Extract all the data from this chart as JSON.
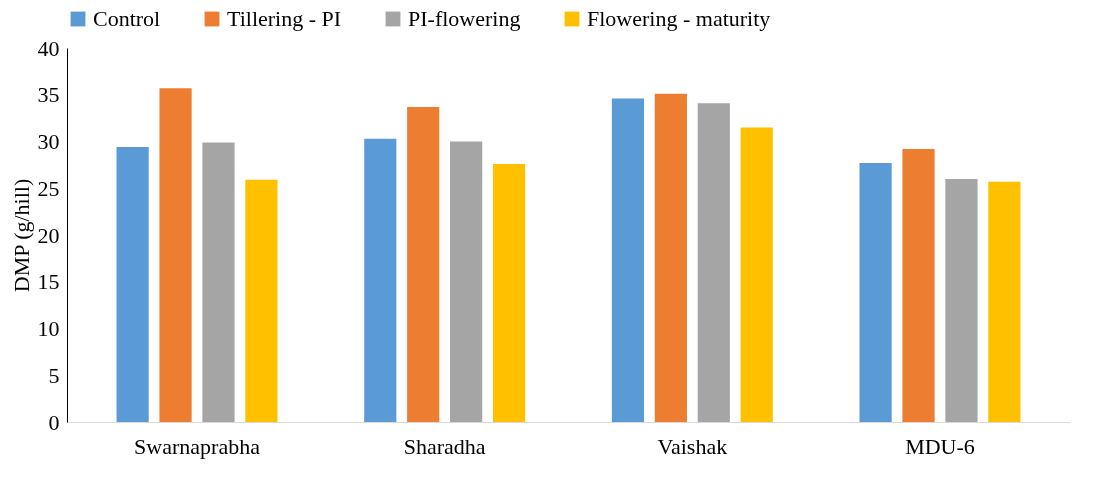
{
  "chart_data": {
    "type": "bar",
    "ylabel": "DMP (g/hill)",
    "categories": [
      "Swarnaprabha",
      "Sharadha",
      "Vaishak",
      "MDU-6"
    ],
    "series": [
      {
        "name": "Control",
        "color": "#5b9bd5",
        "values": [
          29.4,
          30.3,
          34.6,
          27.7
        ]
      },
      {
        "name": "Tillering - PI",
        "color": "#ed7d31",
        "values": [
          35.7,
          33.7,
          35.1,
          29.2
        ]
      },
      {
        "name": "PI-flowering",
        "color": "#a5a5a5",
        "values": [
          29.9,
          30.0,
          34.1,
          26.0
        ]
      },
      {
        "name": "Flowering  - maturity",
        "color": "#ffc000",
        "values": [
          25.9,
          27.6,
          31.5,
          25.7
        ]
      }
    ],
    "ylim": [
      0,
      40
    ],
    "yticks": [
      0,
      5,
      10,
      15,
      20,
      25,
      30,
      35,
      40
    ],
    "legend": "top"
  }
}
